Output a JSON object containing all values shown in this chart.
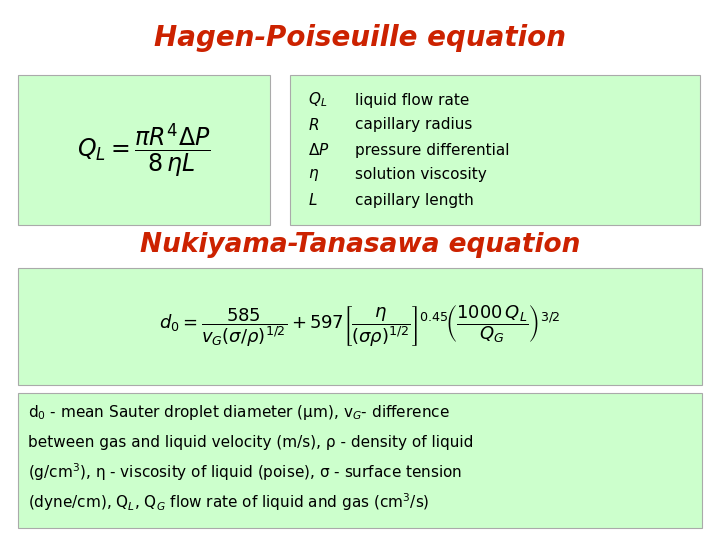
{
  "title": "Hagen-Poiseuille equation",
  "title2": "Nukiyama-Tanasawa equation",
  "title_color": "#cc2200",
  "bg_color": "#ffffff",
  "box_color": "#ccffcc",
  "text_color": "#000000",
  "legend_lines": [
    [
      "$Q_L$",
      "liquid flow rate"
    ],
    [
      "$R$",
      "capillary radius"
    ],
    [
      "$\\Delta P$",
      "pressure differential"
    ],
    [
      "$\\eta$",
      "solution viscosity"
    ],
    [
      "$L$",
      "capillary length"
    ]
  ],
  "description_line1": "d$_0$ - mean Sauter droplet diameter (μm), v$_G$- difference",
  "description_line2": "between gas and liquid velocity (m/s), ρ - density of liquid",
  "description_line3": "(g/cm$^3$), η - viscosity of liquid (poise), σ - surface tension",
  "description_line4": "(dyne/cm), Q$_L$, Q$_G$ flow rate of liquid and gas (cm$^3$/s)"
}
